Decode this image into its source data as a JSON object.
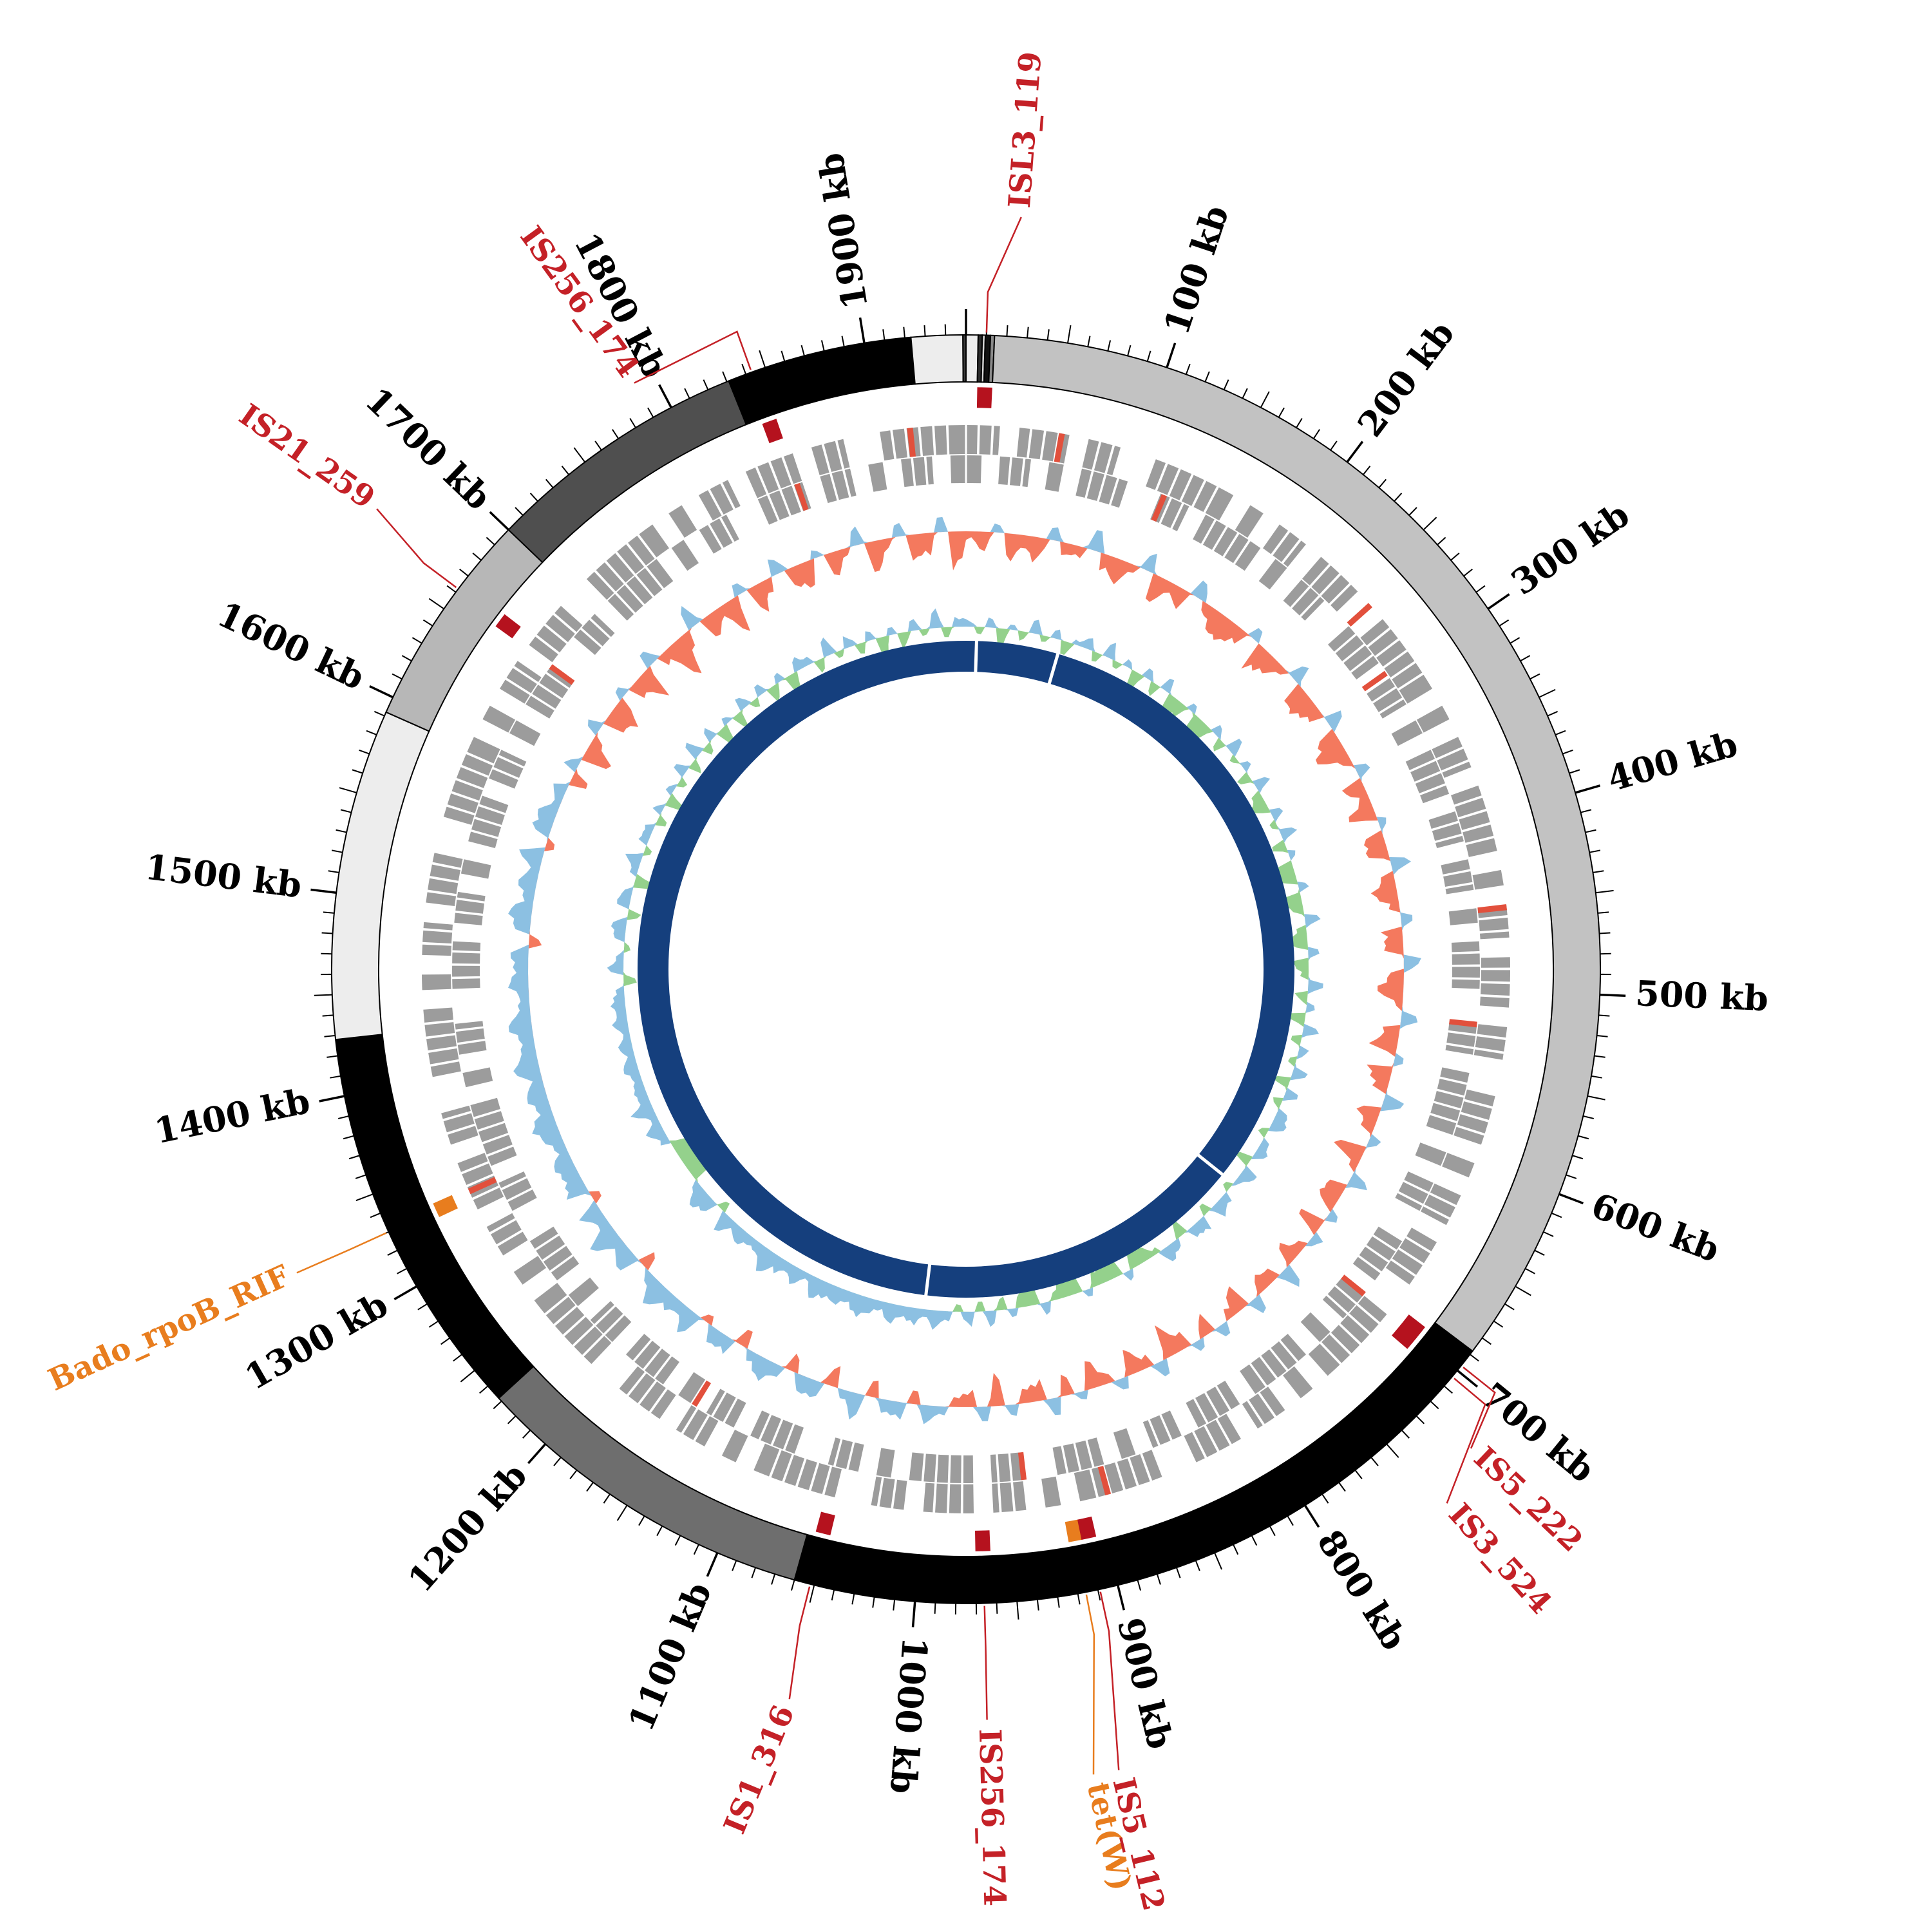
{
  "figure": {
    "background": "#ffffff",
    "unit": "kb"
  },
  "colors": {
    "axis": "#000000",
    "red": "#c42127",
    "orange": "#e87d1e",
    "marker_red": "#b5121e",
    "gene_gray": "#9c9c9c",
    "gene_red": "#e2503c",
    "track1_pos": "#8cc0e2",
    "track1_neg": "#f4795e",
    "track2_pos": "#8cc0e2",
    "track2_neg": "#94d18c",
    "inner_ring": "#153f7d",
    "segment_outline": "#000000"
  },
  "chart_data": {
    "type": "circular-genome-map",
    "genome_length_kb": 1950,
    "tick_minor_kb": 10,
    "tick_mid_kb": 50,
    "tick_major_kb": 100,
    "axis_labels": [
      {
        "kb": 100,
        "text": "100 kb"
      },
      {
        "kb": 200,
        "text": "200 kb"
      },
      {
        "kb": 300,
        "text": "300 kb"
      },
      {
        "kb": 400,
        "text": "400 kb"
      },
      {
        "kb": 500,
        "text": "500 kb"
      },
      {
        "kb": 600,
        "text": "600 kb"
      },
      {
        "kb": 700,
        "text": "700 kb"
      },
      {
        "kb": 800,
        "text": "800 kb"
      },
      {
        "kb": 900,
        "text": "900 kb"
      },
      {
        "kb": 1000,
        "text": "1000 kb"
      },
      {
        "kb": 1100,
        "text": "1100 kb"
      },
      {
        "kb": 1200,
        "text": "1200 kb"
      },
      {
        "kb": 1300,
        "text": "1300 kb"
      },
      {
        "kb": 1400,
        "text": "1400 kb"
      },
      {
        "kb": 1500,
        "text": "1500 kb"
      },
      {
        "kb": 1600,
        "text": "1600 kb"
      },
      {
        "kb": 1700,
        "text": "1700 kb"
      },
      {
        "kb": 1800,
        "text": "1800 kb"
      },
      {
        "kb": 1900,
        "text": "1900 kb"
      }
    ],
    "karyotype_segments": [
      {
        "start": 0,
        "end": 6,
        "color": "#ededed"
      },
      {
        "start": 6,
        "end": 8,
        "color": "#2b2b2b"
      },
      {
        "start": 8,
        "end": 9.5,
        "color": "#d7d7d7"
      },
      {
        "start": 9.5,
        "end": 12,
        "color": "#111111"
      },
      {
        "start": 12,
        "end": 14,
        "color": "#8a8a8a"
      },
      {
        "start": 14,
        "end": 688,
        "color": "#c2c2c2"
      },
      {
        "start": 688,
        "end": 1060,
        "color": "#000000"
      },
      {
        "start": 1060,
        "end": 1232,
        "color": "#6e6e6e"
      },
      {
        "start": 1232,
        "end": 1428,
        "color": "#000000"
      },
      {
        "start": 1428,
        "end": 1592,
        "color": "#ededed"
      },
      {
        "start": 1592,
        "end": 1700,
        "color": "#b7b7b7"
      },
      {
        "start": 1700,
        "end": 1831,
        "color": "#4f4f4f"
      },
      {
        "start": 1831,
        "end": 1923,
        "color": "#000000"
      },
      {
        "start": 1923,
        "end": 1948.5,
        "color": "#ededed"
      },
      {
        "start": 1948.5,
        "end": 1950,
        "color": "#3a3a3a"
      }
    ],
    "gene_track_forward": {
      "bin_kb": 10,
      "pattern": "110111011001111101011011100111110101101111010110111011001110101101110011111010110111001111101011011101100111110101101110011111010110111011001111010110111001111101011011100111110101101110110011111"
    },
    "gene_track_reverse": {
      "bin_kb": 10,
      "pattern": "101101011100110111101011001110110101110110110101110011011110101100111011010111101110110101110011011110101100111011010111011010111001101111010110011101101011101101011100110111101011001110110101101"
    },
    "highlight_genes": [
      {
        "kb": 55,
        "row": 1
      },
      {
        "kb": 123,
        "row": 2
      },
      {
        "kb": 260,
        "row": 1
      },
      {
        "kb": 297,
        "row": 2
      },
      {
        "kb": 452,
        "row": 1
      },
      {
        "kb": 521,
        "row": 2
      },
      {
        "kb": 700,
        "row": 2
      },
      {
        "kb": 893,
        "row": 1
      },
      {
        "kb": 940,
        "row": 2
      },
      {
        "kb": 1148,
        "row": 2
      },
      {
        "kb": 1332,
        "row": 1
      },
      {
        "kb": 1658,
        "row": 2
      },
      {
        "kb": 1846,
        "row": 2
      },
      {
        "kb": 1918,
        "row": 1
      }
    ],
    "tracks": [
      {
        "name": "gc-deviation",
        "pos_color_key": "track1_pos",
        "neg_color_key": "track1_neg",
        "values": [
          -0.2,
          -0.4,
          0.3,
          -0.5,
          -0.3,
          -0.6,
          0.4,
          -0.3,
          -0.2,
          0.7,
          -0.4,
          -0.5,
          -0.2,
          0.5,
          -0.6,
          -0.3,
          -0.4,
          0.6,
          -0.2,
          -0.5,
          -0.6,
          -0.3,
          0.4,
          -0.7,
          -0.4,
          -0.2,
          0.5,
          -0.5,
          -0.6,
          -0.3,
          0.6,
          -0.4,
          -0.7,
          -0.3,
          0.4,
          -0.5,
          -0.2,
          -0.6,
          0.3,
          -0.4,
          -0.5,
          0.5,
          -0.3,
          -0.6,
          -0.2,
          0.4,
          -0.5,
          -0.4,
          0.6,
          -0.3,
          -0.6,
          -0.2,
          0.5,
          -0.4,
          -0.5,
          0.3,
          -0.6,
          -0.3,
          0.7,
          -0.4,
          -0.3,
          0.4,
          -0.6,
          -0.2,
          0.5,
          -0.4,
          -0.5,
          0.3,
          -0.6,
          0.4,
          -0.2,
          -0.5,
          0.6,
          -0.3,
          -0.4,
          0.5,
          -0.6,
          -0.2,
          0.4,
          -0.5,
          0.3,
          -0.4,
          -0.6,
          0.5,
          -0.3,
          -0.5,
          0.4,
          -0.2,
          -0.6,
          0.3,
          -0.4,
          0.6,
          -0.5,
          -0.3,
          0.4,
          -0.6,
          0.5,
          -0.4,
          -0.2,
          0.3,
          0.5,
          -0.3,
          0.6,
          0.4,
          -0.4,
          0.7,
          0.3,
          -0.5,
          0.5,
          0.6,
          -0.3,
          0.4,
          0.8,
          0.3,
          -0.4,
          0.6,
          0.5,
          -0.2,
          0.7,
          0.4,
          0.6,
          0.8,
          0.4,
          -0.3,
          0.7,
          0.5,
          0.9,
          0.4,
          0.6,
          -0.2,
          0.8,
          0.5,
          0.7,
          0.3,
          0.6,
          0.9,
          0.4,
          0.7,
          0.5,
          0.8,
          0.6,
          0.4,
          0.8,
          0.5,
          0.3,
          0.7,
          0.4,
          0.6,
          -0.3,
          0.5,
          0.8,
          0.3,
          0.6,
          0.4,
          0.7,
          -0.2,
          0.5,
          0.6,
          0.3,
          0.4,
          -0.4,
          0.5,
          -0.6,
          -0.3,
          0.4,
          -0.5,
          -0.7,
          0.3,
          -0.4,
          -0.6,
          0.5,
          -0.3,
          -0.8,
          -0.4,
          0.6,
          -0.5,
          -0.3,
          -0.7,
          0.4,
          -0.5,
          -0.3,
          0.6,
          -0.4,
          -0.6,
          0.3,
          -0.5,
          -0.2,
          0.5,
          -0.7,
          -0.3,
          0.4,
          -0.6,
          -0.4,
          0.5,
          -0.9
        ]
      },
      {
        "name": "gc-skew",
        "pos_color_key": "track2_pos",
        "neg_color_key": "track2_neg",
        "values": [
          0.3,
          -0.2,
          0.4,
          -0.5,
          0.2,
          -0.3,
          0.5,
          -0.2,
          0.3,
          -0.4,
          0.2,
          0.4,
          -0.3,
          0.5,
          -0.2,
          0.3,
          -0.6,
          0.4,
          -0.3,
          0.5,
          -0.7,
          -0.4,
          0.3,
          -0.8,
          -0.5,
          0.4,
          -0.3,
          0.6,
          -0.2,
          0.3,
          -0.4,
          0.5,
          -0.3,
          -0.6,
          0.4,
          -0.2,
          0.5,
          -0.4,
          0.3,
          -0.5,
          -0.6,
          0.3,
          -0.7,
          -0.4,
          0.5,
          -0.3,
          -0.8,
          0.4,
          -0.5,
          -0.2,
          0.6,
          -0.4,
          0.3,
          -0.6,
          0.5,
          -0.3,
          0.4,
          -0.2,
          0.6,
          -0.4,
          0.5,
          -0.3,
          0.4,
          0.6,
          -0.2,
          0.3,
          0.5,
          -0.4,
          0.6,
          0.3,
          -0.2,
          0.4,
          0.5,
          -0.3,
          0.6,
          0.4,
          -0.5,
          0.3,
          0.6,
          -0.2,
          -0.4,
          -0.7,
          0.3,
          -0.5,
          -0.9,
          -0.4,
          0.3,
          -0.6,
          -0.8,
          -0.3,
          0.4,
          -0.5,
          -0.7,
          0.3,
          -0.4,
          0.5,
          -0.3,
          0.6,
          -0.2,
          0.4,
          0.6,
          0.3,
          0.7,
          0.4,
          0.8,
          0.3,
          0.6,
          0.9,
          0.4,
          0.7,
          0.5,
          0.8,
          0.3,
          0.6,
          0.4,
          0.7,
          0.9,
          0.5,
          0.3,
          0.6,
          0.4,
          0.7,
          -0.3,
          0.5,
          0.8,
          0.4,
          -0.9,
          -0.6,
          -1.0,
          -0.5,
          0.4,
          0.6,
          0.3,
          0.7,
          0.4,
          0.5,
          0.3,
          0.6,
          0.4,
          0.5,
          0.3,
          0.5,
          0.4,
          0.6,
          0.3,
          -0.4,
          0.5,
          0.3,
          -0.2,
          0.4,
          0.6,
          -0.3,
          0.5,
          0.4,
          -0.6,
          0.3,
          0.5,
          -0.2,
          0.4,
          0.3,
          -0.3,
          0.4,
          -0.5,
          0.3,
          -0.2,
          0.5,
          -0.4,
          0.6,
          -0.3,
          0.4,
          -0.6,
          0.3,
          -0.4,
          0.5,
          -0.2,
          0.4,
          -0.5,
          0.3,
          -0.7,
          0.4,
          0.3,
          -0.4,
          0.6,
          -0.2,
          0.5,
          -0.3,
          0.4,
          -0.6,
          0.3,
          -0.5,
          0.4,
          -0.2,
          0.6,
          -0.3,
          0.4
        ]
      }
    ],
    "inner_ring": {
      "color_key": "inner_ring",
      "gap_positions_kb": [
        10,
        88,
        697,
        1013
      ]
    },
    "features": [
      {
        "label": "ISL3_119",
        "kb": 10,
        "color_key": "red",
        "label_theta": 4.2,
        "label_r": 1185,
        "rot_theta": 4.2
      },
      {
        "label": "IS256_174",
        "kb": 1843,
        "color_key": "red",
        "label_theta": 330.5,
        "label_r": 1060,
        "rot_theta": 324
      },
      {
        "label": "IS21_259",
        "kb": 1662,
        "color_key": "red",
        "label_theta": 308,
        "label_r": 1175,
        "rot_theta": 305
      },
      {
        "label": "Bado_rpoB_RIF",
        "kb": 1330,
        "color_key": "orange",
        "label_theta": 245.6,
        "label_r": 1155,
        "rot_theta": 245.6
      },
      {
        "label": "IS1_316",
        "kb": 1052,
        "color_key": "red",
        "label_theta": 193.6,
        "label_r": 1180,
        "rot_theta": 202.5
      },
      {
        "label": "IS256_174",
        "kb": 966,
        "color_key": "red",
        "label_theta": 178.4,
        "label_r": 1180,
        "rot_theta": 178.4
      },
      {
        "label": "tet(W)",
        "kb": 916,
        "color_key": "orange",
        "label_theta": 171.0,
        "label_r": 1280,
        "rot_theta": 167.5
      },
      {
        "label": "IS5_112",
        "kb": 909,
        "color_key": "red",
        "label_theta": 169.2,
        "label_r": 1280,
        "rot_theta": 166.5
      },
      {
        "label": "IS5_222",
        "kb": 697,
        "color_key": "red",
        "label_theta": 133.5,
        "label_r": 1095,
        "rot_theta": 133.5
      },
      {
        "label": "IS3_524",
        "kb": 704,
        "color_key": "red",
        "label_theta": 138,
        "label_r": 1130,
        "rot_theta": 138
      }
    ]
  }
}
